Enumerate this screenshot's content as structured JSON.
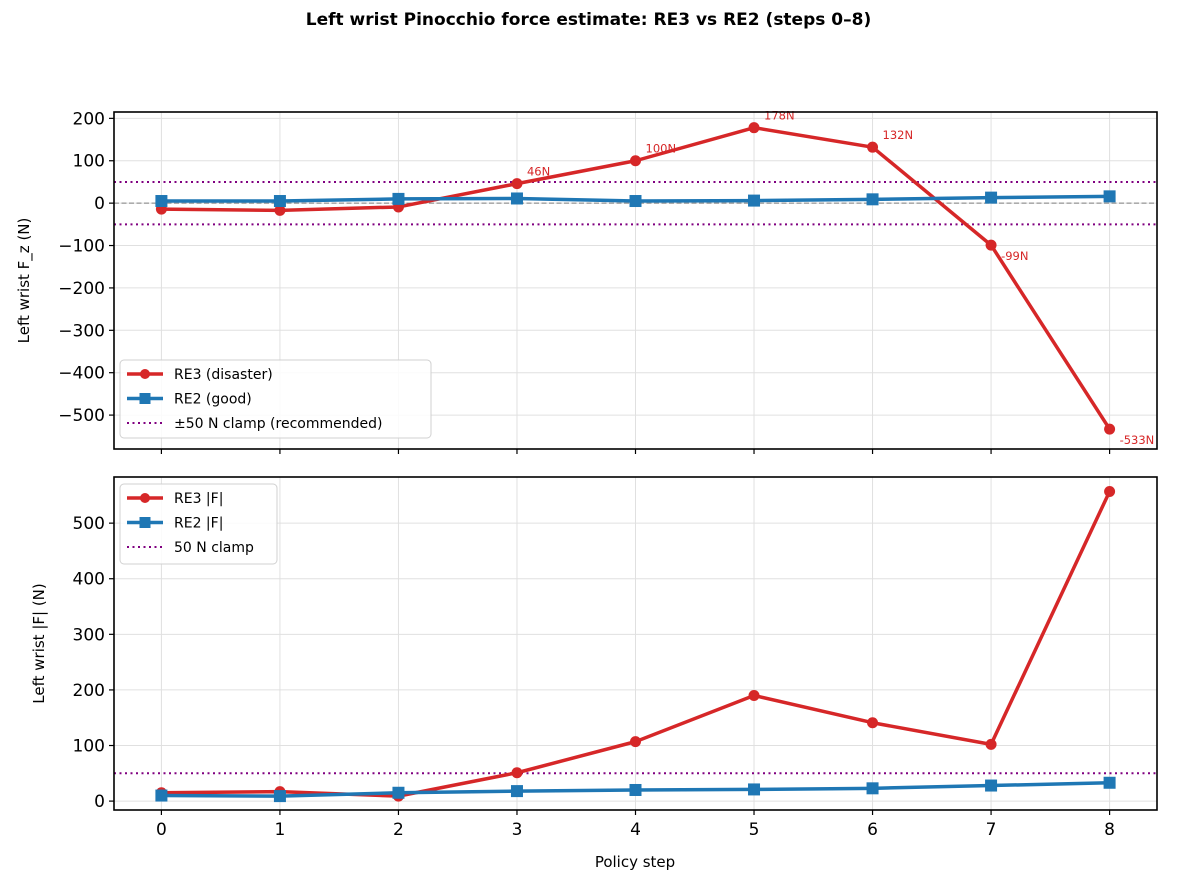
{
  "figure": {
    "title": "Left wrist Pinocchio force estimate: RE3 vs RE2 (steps 0–8)",
    "xlabel": "Policy step"
  },
  "colors": {
    "re3": "#d62728",
    "re2": "#1f77b4",
    "clamp": "#800080",
    "zero_line": "#808080",
    "grid": "#e0e0e0"
  },
  "chart_data": [
    {
      "type": "line",
      "title": "",
      "xlabel": "",
      "ylabel": "Left wrist F_z (N)",
      "x": [
        0,
        1,
        2,
        3,
        4,
        5,
        6,
        7,
        8
      ],
      "xlim": [
        -0.4,
        8.4
      ],
      "ylim": [
        -580,
        215
      ],
      "yticks": [
        200,
        100,
        0,
        -100,
        -200,
        -300,
        -400,
        -500
      ],
      "ytick_labels": [
        "200",
        "100",
        "0",
        "−100",
        "−200",
        "−300",
        "−400",
        "−500"
      ],
      "grid": true,
      "legend_position": "lower left",
      "series": [
        {
          "name": "RE3 (disaster)",
          "marker": "circle",
          "values": [
            -14,
            -17,
            -9,
            46,
            100,
            178,
            132,
            -99,
            -533
          ]
        },
        {
          "name": "RE2 (good)",
          "marker": "square",
          "values": [
            5,
            5,
            10,
            11,
            5,
            6,
            9,
            13,
            16
          ]
        }
      ],
      "reference_lines": [
        {
          "name": "±50 N clamp (recommended)",
          "style": "dotted",
          "y": [
            50,
            -50
          ]
        },
        {
          "name": "zero",
          "style": "dashed",
          "y": [
            0
          ]
        }
      ],
      "annotations": [
        {
          "x": 3,
          "text": "46N"
        },
        {
          "x": 4,
          "text": "100N"
        },
        {
          "x": 5,
          "text": "178N"
        },
        {
          "x": 6,
          "text": "132N"
        },
        {
          "x": 7,
          "text": "-99N"
        },
        {
          "x": 8,
          "text": "-533N"
        }
      ]
    },
    {
      "type": "line",
      "title": "",
      "xlabel": "Policy step",
      "ylabel": "Left wrist |F| (N)",
      "x": [
        0,
        1,
        2,
        3,
        4,
        5,
        6,
        7,
        8
      ],
      "xlim": [
        -0.4,
        8.4
      ],
      "ylim": [
        -16,
        583
      ],
      "yticks": [
        0,
        100,
        200,
        300,
        400,
        500
      ],
      "ytick_labels": [
        "0",
        "100",
        "200",
        "300",
        "400",
        "500"
      ],
      "xtick_labels": [
        "0",
        "1",
        "2",
        "3",
        "4",
        "5",
        "6",
        "7",
        "8"
      ],
      "grid": true,
      "legend_position": "upper left",
      "series": [
        {
          "name": "RE3 |F|",
          "marker": "circle",
          "values": [
            15,
            17,
            9,
            51,
            107,
            190,
            141,
            102,
            557
          ]
        },
        {
          "name": "RE2 |F|",
          "marker": "square",
          "values": [
            10,
            9,
            15,
            18,
            20,
            21,
            23,
            28,
            33
          ]
        }
      ],
      "reference_lines": [
        {
          "name": "50 N clamp",
          "style": "dotted",
          "y": [
            50
          ]
        }
      ]
    }
  ]
}
